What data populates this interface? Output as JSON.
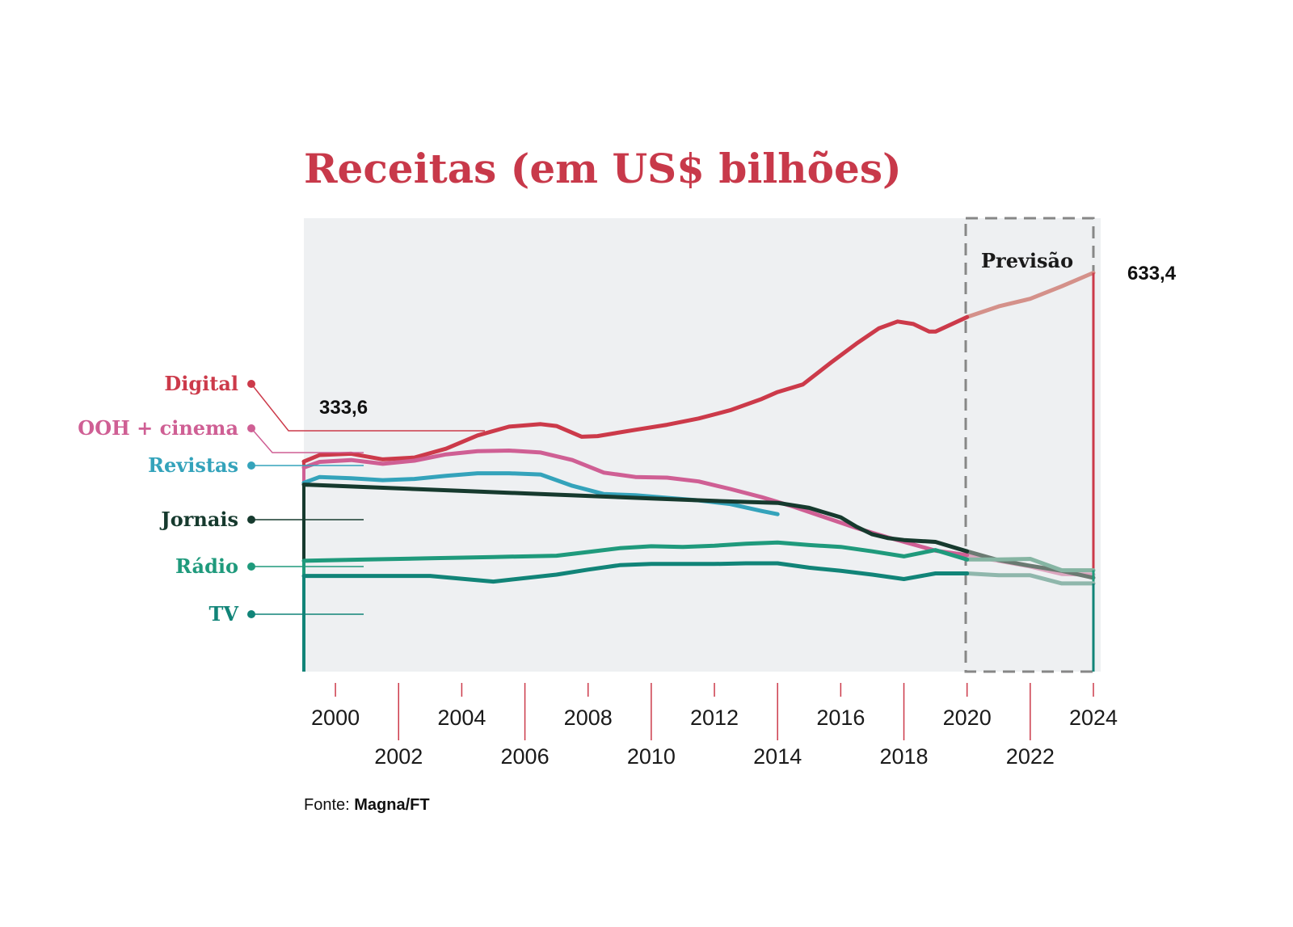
{
  "colors": {
    "title": "#c8394a",
    "plot_bg": "#eef0f2",
    "axis_tick": "#cc3a4a"
  },
  "chart_data": {
    "type": "line",
    "title": "Receitas (em US$ bilhões)",
    "forecast_label": "Previsão",
    "forecast_range": [
      2020,
      2024
    ],
    "xlim": [
      1999,
      2024
    ],
    "ylim": [
      0,
      720
    ],
    "grid": false,
    "x_tick_labels": [
      {
        "year": 2000,
        "label": "2000"
      },
      {
        "year": 2002,
        "label": "2002"
      },
      {
        "year": 2004,
        "label": "2004"
      },
      {
        "year": 2006,
        "label": "2006"
      },
      {
        "year": 2008,
        "label": "2008"
      },
      {
        "year": 2010,
        "label": "2010"
      },
      {
        "year": 2012,
        "label": "2012"
      },
      {
        "year": 2014,
        "label": "2014"
      },
      {
        "year": 2016,
        "label": "2016"
      },
      {
        "year": 2018,
        "label": "2018"
      },
      {
        "year": 2020,
        "label": "2020"
      },
      {
        "year": 2022,
        "label": "2022"
      },
      {
        "year": 2024,
        "label": "2024"
      }
    ],
    "annotations": [
      {
        "year": 1999,
        "value": 333.6,
        "label": "333,6"
      },
      {
        "year": 2024,
        "value": 633.4,
        "label": "633,4"
      }
    ],
    "series": [
      {
        "name": "Digital",
        "color": "#cc3a4a",
        "forecast_color": "#d4918a",
        "points": [
          [
            1999,
            333.6
          ],
          [
            1999.5,
            344
          ],
          [
            2000.5,
            346
          ],
          [
            2001.5,
            337
          ],
          [
            2002.5,
            340
          ],
          [
            2003.5,
            354
          ],
          [
            2004.5,
            375
          ],
          [
            2005.5,
            389
          ],
          [
            2006.5,
            393
          ],
          [
            2007,
            390
          ],
          [
            2007.8,
            373
          ],
          [
            2008.3,
            374
          ],
          [
            2009.5,
            384
          ],
          [
            2010.5,
            392
          ],
          [
            2011.5,
            402
          ],
          [
            2012.5,
            415
          ],
          [
            2013.5,
            433
          ],
          [
            2014,
            444
          ],
          [
            2014.8,
            456
          ],
          [
            2015.7,
            491
          ],
          [
            2016.5,
            521
          ],
          [
            2017.2,
            545
          ],
          [
            2017.8,
            556
          ],
          [
            2018.3,
            552
          ],
          [
            2018.8,
            540
          ],
          [
            2019,
            540
          ],
          [
            2020,
            563
          ],
          [
            2021,
            580
          ],
          [
            2022,
            592
          ],
          [
            2023,
            612
          ],
          [
            2024,
            633.4
          ]
        ]
      },
      {
        "name": "OOH + cinema",
        "color": "#cf5f94",
        "forecast_color": "#dba6bf",
        "points": [
          [
            1999,
            324
          ],
          [
            1999.5,
            333
          ],
          [
            2000.5,
            336
          ],
          [
            2001.5,
            330
          ],
          [
            2002.5,
            335
          ],
          [
            2003.5,
            345
          ],
          [
            2004.5,
            350
          ],
          [
            2005.5,
            351
          ],
          [
            2006.5,
            348
          ],
          [
            2007.5,
            336
          ],
          [
            2008.5,
            316
          ],
          [
            2009.5,
            309
          ],
          [
            2010.5,
            308
          ],
          [
            2011.5,
            302
          ],
          [
            2012.5,
            290
          ],
          [
            2013.5,
            277
          ],
          [
            2014.5,
            262
          ],
          [
            2015.5,
            245
          ],
          [
            2016.5,
            228
          ],
          [
            2017.5,
            213
          ],
          [
            2018.5,
            199
          ],
          [
            2019,
            192
          ],
          [
            2020,
            185
          ],
          [
            2021,
            176
          ],
          [
            2022,
            167
          ],
          [
            2023,
            155
          ],
          [
            2024,
            154
          ]
        ]
      },
      {
        "name": "Revistas",
        "color": "#34a3bb",
        "forecast_color": null,
        "points": [
          [
            1999,
            300
          ],
          [
            1999.5,
            309
          ],
          [
            2000.5,
            307
          ],
          [
            2001.5,
            304
          ],
          [
            2002.5,
            306
          ],
          [
            2003.5,
            311
          ],
          [
            2004.5,
            315
          ],
          [
            2005.5,
            315
          ],
          [
            2006.5,
            313
          ],
          [
            2007.5,
            295
          ],
          [
            2008.5,
            282
          ],
          [
            2009.5,
            280
          ],
          [
            2010.5,
            276
          ],
          [
            2011.5,
            272
          ],
          [
            2012.5,
            266
          ],
          [
            2013.5,
            255
          ],
          [
            2014,
            250
          ]
        ]
      },
      {
        "name": "Jornais",
        "color": "#163a2e",
        "forecast_color": "#6b7a72",
        "points": [
          [
            1999,
            297
          ],
          [
            2000,
            295
          ],
          [
            2002,
            291
          ],
          [
            2004,
            287
          ],
          [
            2006,
            283
          ],
          [
            2008,
            279
          ],
          [
            2010,
            275
          ],
          [
            2012,
            271
          ],
          [
            2014,
            268
          ],
          [
            2015,
            260
          ],
          [
            2016,
            245
          ],
          [
            2016.5,
            230
          ],
          [
            2017,
            218
          ],
          [
            2017.5,
            212
          ],
          [
            2018,
            209
          ],
          [
            2019,
            206
          ],
          [
            2020,
            191
          ],
          [
            2021,
            177
          ],
          [
            2022,
            168
          ],
          [
            2023,
            160
          ],
          [
            2024,
            149
          ]
        ]
      },
      {
        "name": "Rádio",
        "color": "#1f9a7c",
        "forecast_color": "#86b5a3",
        "points": [
          [
            1999,
            176
          ],
          [
            2001,
            178
          ],
          [
            2003,
            180
          ],
          [
            2005,
            182
          ],
          [
            2007,
            184
          ],
          [
            2008,
            190
          ],
          [
            2009,
            196
          ],
          [
            2010,
            199
          ],
          [
            2011,
            198
          ],
          [
            2012,
            200
          ],
          [
            2013,
            203
          ],
          [
            2014,
            205
          ],
          [
            2015,
            201
          ],
          [
            2016,
            198
          ],
          [
            2017,
            191
          ],
          [
            2018,
            183
          ],
          [
            2019,
            193
          ],
          [
            2020,
            178
          ],
          [
            2021,
            178
          ],
          [
            2022,
            179
          ],
          [
            2023,
            161
          ],
          [
            2024,
            161
          ]
        ]
      },
      {
        "name": "TV",
        "color": "#118478",
        "forecast_color": "#8fb7ac",
        "points": [
          [
            1999,
            152
          ],
          [
            2001,
            152
          ],
          [
            2003,
            152
          ],
          [
            2005,
            143
          ],
          [
            2007,
            154
          ],
          [
            2008,
            162
          ],
          [
            2009,
            169
          ],
          [
            2010,
            171
          ],
          [
            2011,
            171
          ],
          [
            2012,
            171
          ],
          [
            2013,
            172
          ],
          [
            2014,
            172
          ],
          [
            2015,
            165
          ],
          [
            2016,
            160
          ],
          [
            2017,
            154
          ],
          [
            2018,
            147
          ],
          [
            2019,
            156
          ],
          [
            2020,
            156
          ],
          [
            2021,
            153
          ],
          [
            2022,
            153
          ],
          [
            2023,
            140
          ],
          [
            2024,
            140
          ]
        ]
      }
    ]
  },
  "source": {
    "prefix": "Fonte:",
    "name": "Magna/FT"
  }
}
